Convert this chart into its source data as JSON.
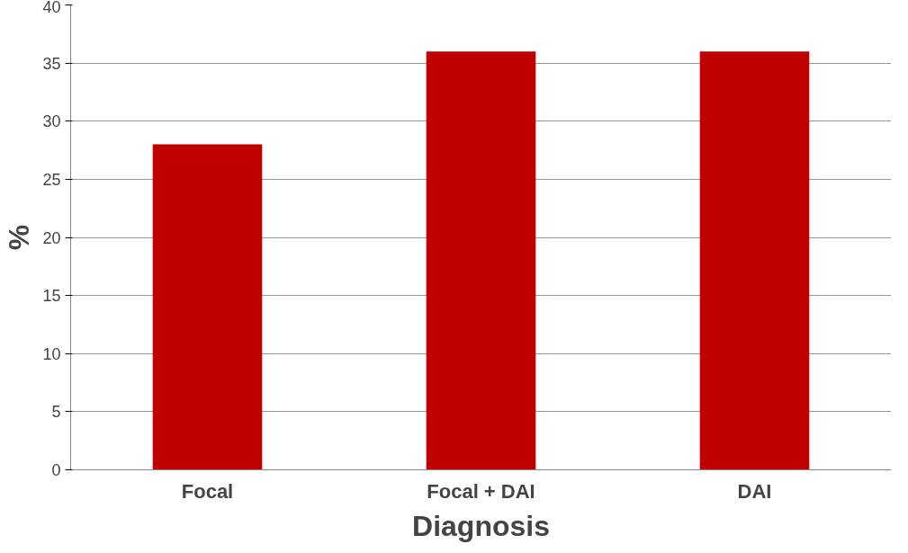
{
  "chart_data": {
    "type": "bar",
    "xlabel": "Diagnosis",
    "ylabel": "%",
    "categories": [
      "Focal",
      "Focal + DAI",
      "DAI"
    ],
    "values": [
      28,
      36,
      36
    ],
    "color": "#c00000",
    "ylim": [
      0,
      40
    ],
    "yticks": [
      0,
      5,
      10,
      15,
      20,
      25,
      30,
      35,
      40
    ],
    "grid": "y"
  }
}
